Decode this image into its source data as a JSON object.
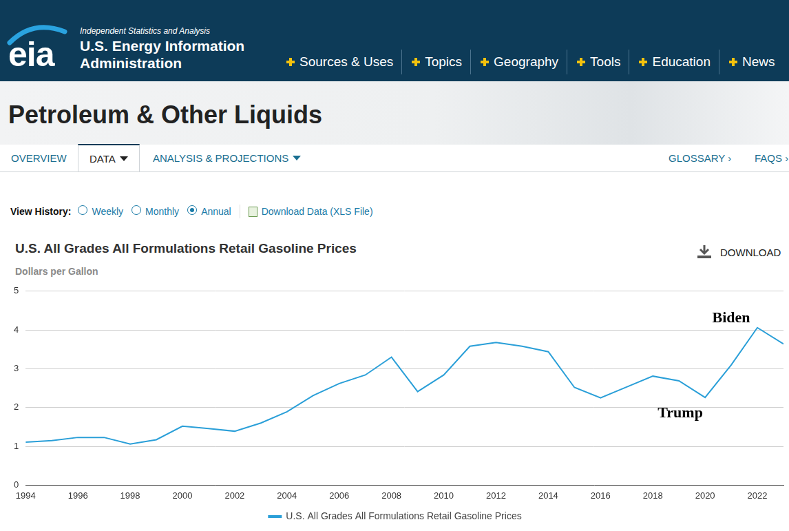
{
  "header": {
    "logo": "eia",
    "tagline": "Independent Statistics and Analysis",
    "agency": [
      "U.S. Energy Information",
      "Administration"
    ],
    "nav": [
      "Sources & Uses",
      "Topics",
      "Geography",
      "Tools",
      "Education",
      "News"
    ]
  },
  "banner": {
    "title": "Petroleum & Other Liquids"
  },
  "tabs": {
    "left": [
      "OVERVIEW",
      "DATA",
      "ANALYSIS & PROJECTIONS"
    ],
    "active": "DATA",
    "right": [
      "GLOSSARY ›",
      "FAQS ›"
    ]
  },
  "view_history": {
    "label": "View History:",
    "options": [
      "Weekly",
      "Monthly",
      "Annual"
    ],
    "selected": "Annual",
    "download_data": "Download Data (XLS File)"
  },
  "chart_data": {
    "type": "line",
    "title": "U.S. All Grades All Formulations Retail Gasoline Prices",
    "download": "DOWNLOAD",
    "y_label": "Dollars per Gallon",
    "x": [
      1994,
      1995,
      1996,
      1997,
      1998,
      1999,
      2000,
      2001,
      2002,
      2003,
      2004,
      2005,
      2006,
      2007,
      2008,
      2009,
      2010,
      2011,
      2012,
      2013,
      2014,
      2015,
      2016,
      2017,
      2018,
      2019,
      2020,
      2021,
      2022,
      2023
    ],
    "series": [
      {
        "name": "U.S. All Grades All Formulations Retail Gasoline Prices",
        "color": "#2a9fd8",
        "values": [
          1.11,
          1.15,
          1.23,
          1.23,
          1.06,
          1.17,
          1.52,
          1.46,
          1.39,
          1.6,
          1.89,
          2.31,
          2.62,
          2.84,
          3.3,
          2.41,
          2.84,
          3.58,
          3.68,
          3.58,
          3.44,
          2.52,
          2.25,
          2.53,
          2.81,
          2.69,
          2.26,
          3.1,
          4.06,
          3.64
        ]
      }
    ],
    "xlim": [
      1994,
      2023
    ],
    "xticks": [
      1994,
      1996,
      1998,
      2000,
      2002,
      2004,
      2006,
      2008,
      2010,
      2012,
      2014,
      2016,
      2018,
      2020,
      2022
    ],
    "ylim": [
      0,
      5
    ],
    "yticks": [
      0,
      1,
      2,
      3,
      4,
      5
    ],
    "grid": "y",
    "legend": "bottom",
    "annotations": [
      {
        "text": "Biden",
        "x": 2022
      },
      {
        "text": "Trump",
        "x": 2020
      }
    ]
  }
}
